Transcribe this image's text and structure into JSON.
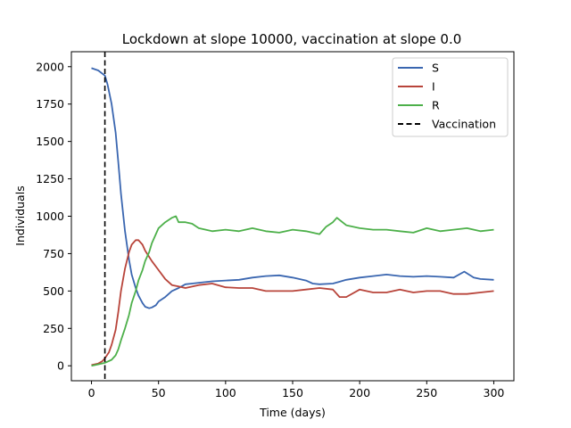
{
  "chart_data": {
    "type": "line",
    "title": "Lockdown at slope 10000, vaccination at slope 0.0",
    "xlabel": "Time (days)",
    "ylabel": "Individuals",
    "xlim": [
      -15,
      315
    ],
    "ylim": [
      -100,
      2100
    ],
    "xticks": [
      0,
      50,
      100,
      150,
      200,
      250,
      300
    ],
    "yticks": [
      0,
      250,
      500,
      750,
      1000,
      1250,
      1500,
      1750,
      2000
    ],
    "grid": false,
    "legend_position": "top-right",
    "vline": {
      "x": 10,
      "name": "Vaccination",
      "color": "#000000",
      "style": "dashed"
    },
    "series": [
      {
        "name": "S",
        "color": "#3a66b0",
        "x": [
          0,
          5,
          10,
          12,
          15,
          18,
          20,
          22,
          25,
          28,
          30,
          33,
          35,
          38,
          40,
          43,
          45,
          48,
          50,
          55,
          60,
          65,
          70,
          75,
          80,
          90,
          100,
          110,
          120,
          130,
          140,
          150,
          160,
          165,
          170,
          180,
          190,
          200,
          210,
          220,
          230,
          240,
          250,
          260,
          270,
          278,
          285,
          290,
          300
        ],
        "y": [
          1990,
          1975,
          1940,
          1880,
          1750,
          1560,
          1360,
          1150,
          900,
          710,
          610,
          520,
          470,
          420,
          395,
          385,
          390,
          405,
          430,
          460,
          500,
          520,
          545,
          550,
          555,
          565,
          570,
          575,
          590,
          600,
          605,
          590,
          570,
          550,
          545,
          550,
          575,
          590,
          600,
          610,
          600,
          595,
          600,
          595,
          590,
          630,
          590,
          580,
          575
        ]
      },
      {
        "name": "I",
        "color": "#b8443a",
        "x": [
          0,
          5,
          8,
          10,
          13,
          15,
          18,
          20,
          22,
          25,
          28,
          30,
          33,
          35,
          38,
          40,
          45,
          50,
          55,
          60,
          65,
          70,
          80,
          90,
          100,
          110,
          120,
          130,
          140,
          150,
          160,
          170,
          180,
          185,
          190,
          200,
          210,
          220,
          230,
          240,
          250,
          260,
          270,
          280,
          290,
          300
        ],
        "y": [
          5,
          15,
          30,
          50,
          90,
          140,
          240,
          360,
          500,
          650,
          760,
          810,
          840,
          840,
          810,
          770,
          700,
          640,
          580,
          540,
          530,
          520,
          540,
          550,
          525,
          520,
          520,
          500,
          500,
          500,
          510,
          520,
          510,
          460,
          460,
          510,
          490,
          490,
          510,
          490,
          500,
          500,
          480,
          480,
          490,
          500
        ]
      },
      {
        "name": "R",
        "color": "#4db04a",
        "x": [
          0,
          5,
          10,
          15,
          18,
          20,
          22,
          25,
          28,
          30,
          33,
          35,
          38,
          40,
          43,
          45,
          48,
          50,
          55,
          60,
          63,
          65,
          70,
          75,
          80,
          90,
          100,
          110,
          120,
          130,
          140,
          150,
          160,
          170,
          175,
          180,
          183,
          190,
          200,
          210,
          220,
          230,
          240,
          250,
          260,
          270,
          280,
          290,
          300
        ],
        "y": [
          0,
          10,
          20,
          40,
          70,
          110,
          170,
          250,
          340,
          420,
          500,
          570,
          640,
          700,
          760,
          820,
          880,
          920,
          960,
          990,
          1000,
          960,
          960,
          950,
          920,
          900,
          910,
          900,
          920,
          900,
          890,
          910,
          900,
          880,
          930,
          960,
          990,
          940,
          920,
          910,
          910,
          900,
          890,
          920,
          900,
          910,
          920,
          900,
          910
        ]
      }
    ]
  }
}
